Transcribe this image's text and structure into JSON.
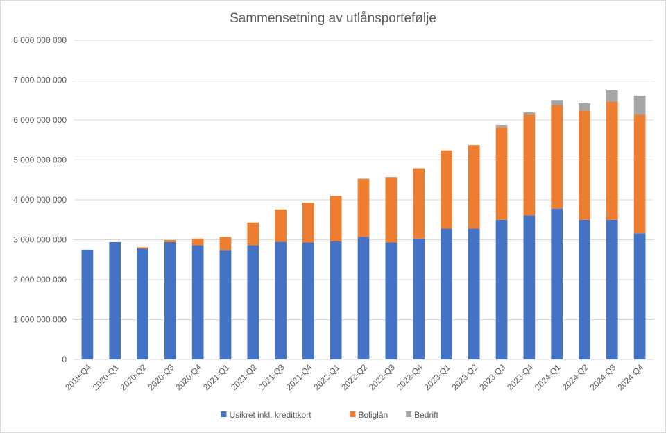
{
  "chart_data": {
    "type": "bar",
    "stacked": true,
    "title": "Sammensetning av utlånsportefølje",
    "xlabel": "",
    "ylabel": "",
    "ylim": [
      0,
      8000000000
    ],
    "yticks": [
      0,
      1000000000,
      2000000000,
      3000000000,
      4000000000,
      5000000000,
      6000000000,
      7000000000,
      8000000000
    ],
    "ytick_labels": [
      "0",
      "1 000 000 000",
      "2 000 000 000",
      "3 000 000 000",
      "4 000 000 000",
      "5 000 000 000",
      "6 000 000 000",
      "7 000 000 000",
      "8 000 000 000"
    ],
    "grid": true,
    "legend_position": "bottom",
    "categories": [
      "2019-Q4",
      "2020-Q1",
      "2020-Q2",
      "2020-Q3",
      "2020-Q4",
      "2021-Q1",
      "2021-Q2",
      "2021-Q3",
      "2021-Q4",
      "2022-Q1",
      "2022-Q2",
      "2022-Q3",
      "2022-Q4",
      "2023-Q1",
      "2023-Q2",
      "2023-Q3",
      "2023-Q4",
      "2024-Q1",
      "2024-Q2",
      "2024-Q3",
      "2024-Q4"
    ],
    "series": [
      {
        "name": "Usikret inkl. kredittkort",
        "color": "#4472c4",
        "values": [
          2750000000,
          2940000000,
          2780000000,
          2940000000,
          2860000000,
          2740000000,
          2860000000,
          2950000000,
          2930000000,
          2960000000,
          3070000000,
          2930000000,
          3030000000,
          3280000000,
          3280000000,
          3500000000,
          3610000000,
          3780000000,
          3500000000,
          3500000000,
          3160000000
        ]
      },
      {
        "name": "Boliglån",
        "color": "#ed7d31",
        "values": [
          0,
          0,
          30000000,
          50000000,
          170000000,
          330000000,
          570000000,
          810000000,
          1000000000,
          1140000000,
          1460000000,
          1640000000,
          1760000000,
          1960000000,
          2090000000,
          2320000000,
          2520000000,
          2590000000,
          2740000000,
          2960000000,
          2970000000
        ]
      },
      {
        "name": "Bedrift",
        "color": "#a5a5a5",
        "values": [
          0,
          0,
          0,
          0,
          0,
          0,
          0,
          0,
          0,
          0,
          0,
          0,
          0,
          0,
          0,
          60000000,
          60000000,
          130000000,
          180000000,
          290000000,
          480000000
        ]
      }
    ]
  }
}
